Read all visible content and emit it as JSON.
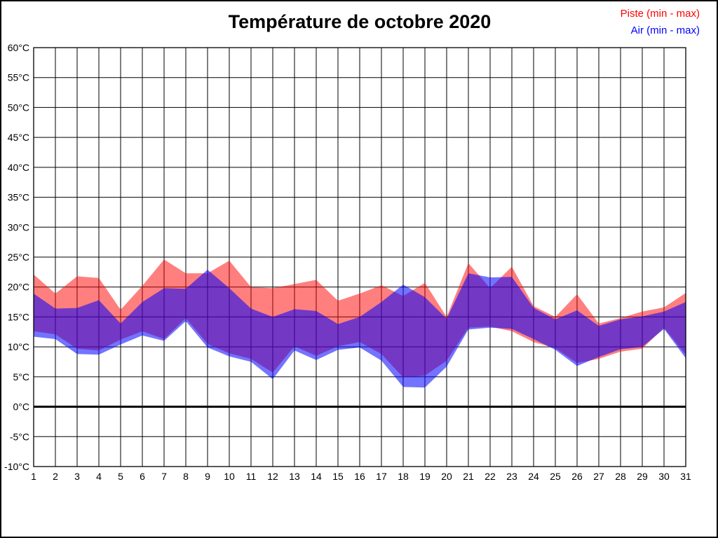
{
  "title": "Température de octobre 2020",
  "legend": [
    {
      "label": "Piste (min - max)",
      "color": "#ff0000"
    },
    {
      "label": "Air (min - max)",
      "color": "#0000ff"
    }
  ],
  "chart_data": {
    "type": "area",
    "title": "Température de octobre 2020",
    "xlabel": "",
    "ylabel": "",
    "grid": true,
    "legend_position": "top-right",
    "ylim": [
      -10,
      60
    ],
    "y_tick_step": 5,
    "y_tick_labels": [
      "60°C",
      "55°C",
      "50°C",
      "45°C",
      "40°C",
      "35°C",
      "30°C",
      "25°C",
      "20°C",
      "15°C",
      "10°C",
      "5°C",
      "0°C",
      "-5°C",
      "-10°C"
    ],
    "x": [
      1,
      2,
      3,
      4,
      5,
      6,
      7,
      8,
      9,
      10,
      11,
      12,
      13,
      14,
      15,
      16,
      17,
      18,
      19,
      20,
      21,
      22,
      23,
      24,
      25,
      26,
      27,
      28,
      29,
      30,
      31
    ],
    "x_tick_labels": [
      "1",
      "2",
      "3",
      "4",
      "5",
      "6",
      "7",
      "8",
      "9",
      "10",
      "11",
      "12",
      "13",
      "14",
      "15",
      "16",
      "17",
      "18",
      "19",
      "20",
      "21",
      "22",
      "23",
      "24",
      "25",
      "26",
      "27",
      "28",
      "29",
      "30",
      "31"
    ],
    "zero_line_value": 0,
    "series": [
      {
        "name": "Piste (min - max)",
        "band": true,
        "color": "#ff0000",
        "opacity": 0.5,
        "min": [
          12.6,
          12.1,
          9.7,
          9.4,
          11.2,
          12.6,
          11.3,
          14.8,
          10.5,
          8.9,
          8.0,
          5.7,
          10.1,
          8.5,
          10.1,
          10.8,
          8.8,
          4.9,
          5.2,
          7.7,
          13.2,
          13.4,
          12.6,
          10.8,
          9.8,
          7.3,
          8.0,
          9.2,
          9.7,
          13.2,
          8.7
        ],
        "max": [
          22.1,
          18.9,
          21.8,
          21.5,
          16.2,
          20.2,
          24.6,
          22.3,
          22.3,
          24.4,
          20.0,
          19.8,
          20.5,
          21.2,
          17.7,
          18.9,
          20.3,
          18.5,
          20.7,
          15.0,
          24.0,
          19.8,
          23.4,
          16.8,
          15.0,
          18.8,
          13.9,
          14.8,
          15.9,
          16.6,
          19.0
        ]
      },
      {
        "name": "Air (min - max)",
        "band": true,
        "color": "#0000ff",
        "opacity": 0.55,
        "min": [
          11.7,
          11.3,
          8.8,
          8.7,
          10.4,
          11.9,
          11.0,
          14.3,
          9.9,
          8.4,
          7.5,
          4.6,
          9.4,
          7.8,
          9.5,
          9.9,
          7.7,
          3.3,
          3.2,
          6.7,
          12.9,
          13.2,
          13.0,
          11.3,
          9.5,
          6.8,
          8.3,
          9.6,
          10.0,
          13.0,
          8.1
        ],
        "max": [
          18.9,
          16.4,
          16.5,
          17.8,
          13.9,
          17.5,
          19.8,
          19.7,
          22.9,
          19.8,
          16.4,
          15.0,
          16.3,
          16.0,
          13.8,
          15.0,
          17.5,
          20.4,
          18.3,
          14.7,
          22.3,
          21.6,
          21.7,
          16.5,
          14.6,
          16.1,
          13.5,
          14.6,
          15.1,
          15.9,
          17.5
        ]
      }
    ]
  }
}
